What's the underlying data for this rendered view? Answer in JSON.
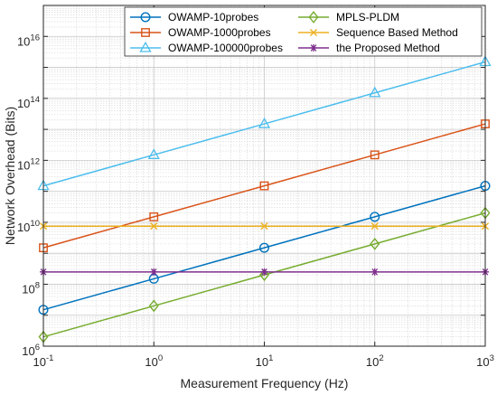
{
  "chart_data": {
    "type": "line",
    "xlabel": "Measurement Frequency (Hz)",
    "ylabel": "Network Overhead (Bits)",
    "xscale": "log",
    "yscale": "log",
    "xlim": [
      0.1,
      1000
    ],
    "ylim": [
      1000000,
      100000000000000000
    ],
    "grid": true,
    "minor_grid": true,
    "legend_position": "top",
    "legend_columns": 2,
    "x": [
      0.1,
      1,
      10,
      100,
      1000
    ],
    "x_ticks": [
      {
        "value": 0.1,
        "base": "10",
        "exp": "-1"
      },
      {
        "value": 1,
        "base": "10",
        "exp": "0"
      },
      {
        "value": 10,
        "base": "10",
        "exp": "1"
      },
      {
        "value": 100,
        "base": "10",
        "exp": "2"
      },
      {
        "value": 1000,
        "base": "10",
        "exp": "3"
      }
    ],
    "y_ticks": [
      {
        "value": 1000000,
        "base": "10",
        "exp": "6"
      },
      {
        "value": 100000000,
        "base": "10",
        "exp": "8"
      },
      {
        "value": 10000000000,
        "base": "10",
        "exp": "10"
      },
      {
        "value": 1000000000000,
        "base": "10",
        "exp": "12"
      },
      {
        "value": 100000000000000,
        "base": "10",
        "exp": "14"
      },
      {
        "value": 10000000000000000,
        "base": "10",
        "exp": "16"
      }
    ],
    "series": [
      {
        "name": "OWAMP-10probes",
        "color": "#0072BD",
        "marker": "circle",
        "values": [
          15000000,
          150000000,
          1500000000,
          15000000000,
          150000000000
        ]
      },
      {
        "name": "OWAMP-1000probes",
        "color": "#D95319",
        "marker": "square",
        "values": [
          1500000000,
          15000000000,
          150000000000,
          1500000000000,
          15000000000000
        ]
      },
      {
        "name": "OWAMP-100000probes",
        "color": "#4DBEEE",
        "marker": "triangle",
        "values": [
          150000000000,
          1500000000000,
          15000000000000,
          150000000000000,
          1500000000000000
        ]
      },
      {
        "name": "MPLS-PLDM",
        "color": "#77AC30",
        "marker": "diamond",
        "values": [
          2000000,
          20000000,
          200000000,
          2000000000,
          20000000000
        ]
      },
      {
        "name": "Sequence Based Method",
        "color": "#EDB120",
        "marker": "x",
        "values": [
          7500000000,
          7500000000,
          7500000000,
          7500000000,
          7500000000
        ]
      },
      {
        "name": "the Proposed Method",
        "color": "#7E2F8E",
        "marker": "asterisk",
        "values": [
          250000000,
          250000000,
          250000000,
          250000000,
          250000000
        ]
      }
    ]
  }
}
